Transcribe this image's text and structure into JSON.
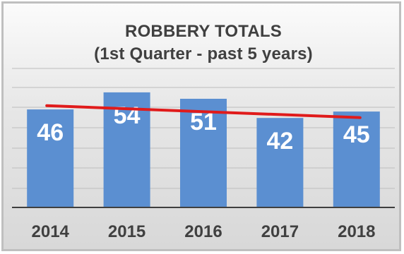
{
  "chart_data": {
    "type": "bar",
    "title": "ROBBERY TOTALS",
    "subtitle": "(1st Quarter - past 5 years)",
    "categories": [
      "2014",
      "2015",
      "2016",
      "2017",
      "2018"
    ],
    "values": [
      46,
      54,
      51,
      42,
      45
    ],
    "trendline": true,
    "grid": true,
    "colors": {
      "bar": "#5b8fd1",
      "bar_label": "#ffffff",
      "trendline": "#e01b1b",
      "axis_text": "#404040",
      "grid": "#bdbdbd"
    }
  }
}
